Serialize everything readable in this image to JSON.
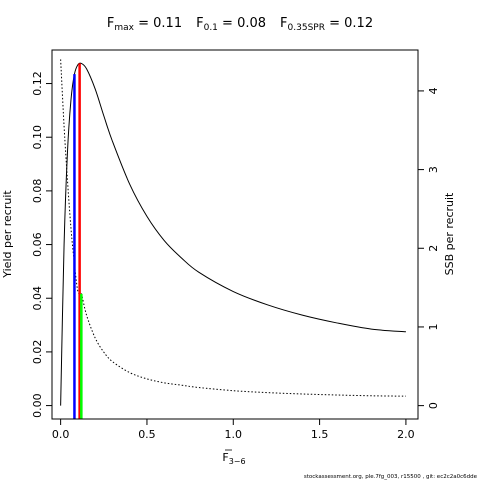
{
  "chart_data": {
    "type": "line",
    "title": {
      "fmax": {
        "name": "F",
        "sub": "max",
        "value": "0.11"
      },
      "f01": {
        "name": "F",
        "sub": "0.1",
        "value": "0.08"
      },
      "f035": {
        "name": "F",
        "sub": "0.35SPR",
        "value": "0.12"
      }
    },
    "xlabel": {
      "main": "F",
      "sub": "3−6"
    },
    "ylabel_left": "Yield per recruit",
    "ylabel_right": "SSB per recruit",
    "xlim": [
      -0.05,
      2.07
    ],
    "ylim_left": [
      -0.005,
      0.1325
    ],
    "ylim_right": [
      -0.17,
      4.52
    ],
    "x_ticks": [
      0,
      0.5,
      1,
      1.5,
      2
    ],
    "x_tick_labels": [
      "0.0",
      "0.5",
      "1.0",
      "1.5",
      "2.0"
    ],
    "y_left_ticks": [
      0,
      0.02,
      0.04,
      0.06,
      0.08,
      0.1,
      0.12
    ],
    "y_left_tick_labels": [
      "0.00",
      "0.02",
      "0.04",
      "0.06",
      "0.08",
      "0.10",
      "0.12"
    ],
    "y_right_ticks": [
      0,
      1,
      2,
      3,
      4
    ],
    "y_right_tick_labels": [
      "0",
      "1",
      "2",
      "3",
      "4"
    ],
    "series": [
      {
        "name": "Yield per recruit",
        "axis": "left",
        "style": "solid",
        "color": "#000000",
        "x": [
          0,
          0.02,
          0.04,
          0.06,
          0.08,
          0.1,
          0.12,
          0.15,
          0.2,
          0.25,
          0.3,
          0.4,
          0.5,
          0.6,
          0.7,
          0.8,
          1.0,
          1.2,
          1.4,
          1.6,
          1.8,
          2.0
        ],
        "y": [
          0,
          0.06,
          0.095,
          0.114,
          0.1235,
          0.127,
          0.1275,
          0.1255,
          0.118,
          0.108,
          0.0985,
          0.0825,
          0.0705,
          0.0615,
          0.055,
          0.0497,
          0.0425,
          0.0375,
          0.0337,
          0.0308,
          0.0285,
          0.0275
        ]
      },
      {
        "name": "SSB per recruit",
        "axis": "right",
        "style": "dotted",
        "color": "#000000",
        "x": [
          0,
          0.02,
          0.04,
          0.06,
          0.08,
          0.1,
          0.12,
          0.15,
          0.2,
          0.25,
          0.3,
          0.4,
          0.5,
          0.6,
          0.7,
          0.8,
          1.0,
          1.2,
          1.4,
          1.6,
          1.8,
          2.0
        ],
        "y": [
          4.4,
          3.55,
          2.85,
          2.25,
          1.8,
          1.45,
          1.42,
          1.15,
          0.86,
          0.68,
          0.56,
          0.42,
          0.34,
          0.29,
          0.26,
          0.23,
          0.19,
          0.165,
          0.148,
          0.135,
          0.125,
          0.12
        ]
      }
    ],
    "reference_lines": [
      {
        "name": "F0.1",
        "x": 0.08,
        "color": "#0000ff",
        "axis": "left",
        "y_top": 0.1235
      },
      {
        "name": "Fmax",
        "x": 0.11,
        "color": "#ff0000",
        "axis": "left",
        "y_top": 0.1275
      },
      {
        "name": "F0.35SPR",
        "x": 0.12,
        "color": "#00ff00",
        "axis": "right",
        "y_top": 1.42
      }
    ],
    "grid": false,
    "footer": "stockassessment.org, ple.7fg_003, r15500 , git: ec2c2a0c6dde"
  }
}
